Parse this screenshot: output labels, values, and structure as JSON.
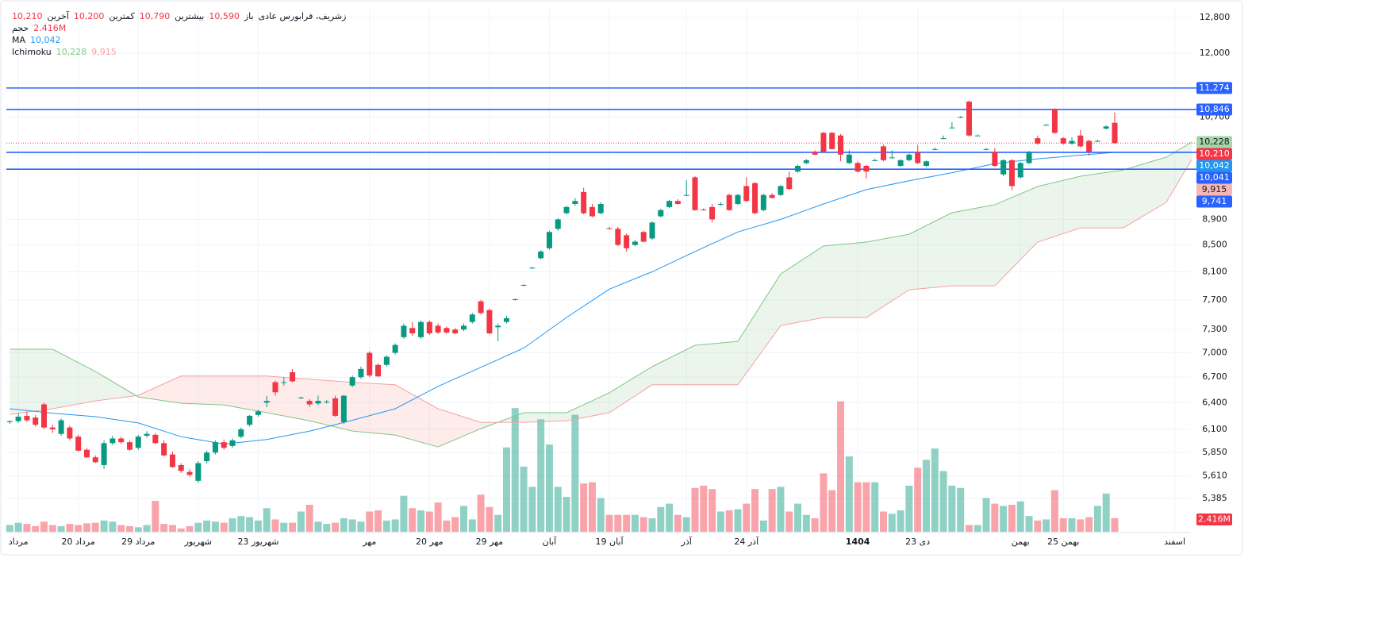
{
  "chart_data": {
    "type": "candlestick",
    "title": "زشریف، فرابورس عادی",
    "ohlc_names": [
      "باز",
      "بیشترین",
      "کمترین",
      "آخرین"
    ],
    "ohlc_labels": [
      "10,590",
      "10,790",
      "10,200",
      "10,210"
    ],
    "up_color": "#089981",
    "down_color": "#f23645",
    "log_scale": true,
    "grid": true,
    "xlim": [
      -0.4,
      137.8
    ],
    "ylim": [
      5073,
      13021
    ],
    "yticks": [
      {
        "value": 12800,
        "label": "12,800"
      },
      {
        "value": 12000,
        "label": "12,000"
      },
      {
        "value": 10700,
        "label": "10,700"
      },
      {
        "value": 8900,
        "label": "8,900"
      },
      {
        "value": 8500,
        "label": "8,500"
      },
      {
        "value": 8100,
        "label": "8,100"
      },
      {
        "value": 7700,
        "label": "7,700"
      },
      {
        "value": 7300,
        "label": "7,300"
      },
      {
        "value": 7000,
        "label": "7,000"
      },
      {
        "value": 6700,
        "label": "6,700"
      },
      {
        "value": 6400,
        "label": "6,400"
      },
      {
        "value": 6100,
        "label": "6,100"
      },
      {
        "value": 5850,
        "label": "5,850"
      },
      {
        "value": 5610,
        "label": "5,610"
      },
      {
        "value": 5385,
        "label": "5,385"
      }
    ],
    "xticks": [
      {
        "value": 1,
        "label": "مرداد"
      },
      {
        "value": 8,
        "label": "20 مرداد"
      },
      {
        "value": 15,
        "label": "29 مرداد"
      },
      {
        "value": 22,
        "label": "شهریور"
      },
      {
        "value": 29,
        "label": "23 شهریور"
      },
      {
        "value": 42,
        "label": "مهر"
      },
      {
        "value": 49,
        "label": "20 مهر"
      },
      {
        "value": 56,
        "label": "29 مهر"
      },
      {
        "value": 63,
        "label": "آبان"
      },
      {
        "value": 70,
        "label": "19 آبان"
      },
      {
        "value": 79,
        "label": "آذر"
      },
      {
        "value": 86,
        "label": "24 آذر"
      },
      {
        "value": 99,
        "label": "1404"
      },
      {
        "value": 106,
        "label": "23 دی"
      },
      {
        "value": 118,
        "label": "بهمن"
      },
      {
        "value": 123,
        "label": "25 بهمن"
      },
      {
        "value": 136,
        "label": "اسفند"
      }
    ],
    "candles": [
      [
        6180,
        6200,
        6160,
        6190
      ],
      [
        6190,
        6280,
        6170,
        6240
      ],
      [
        6250,
        6300,
        6180,
        6200
      ],
      [
        6230,
        6260,
        6130,
        6150
      ],
      [
        6380,
        6400,
        6100,
        6120
      ],
      [
        6120,
        6150,
        6060,
        6100
      ],
      [
        6050,
        6220,
        6030,
        6200
      ],
      [
        6120,
        6140,
        5980,
        6000
      ],
      [
        6020,
        6040,
        5860,
        5870
      ],
      [
        5880,
        5900,
        5790,
        5800
      ],
      [
        5800,
        5820,
        5740,
        5750
      ],
      [
        5720,
        5980,
        5680,
        5950
      ],
      [
        5950,
        6030,
        5930,
        6000
      ],
      [
        6000,
        6020,
        5940,
        5960
      ],
      [
        5960,
        5980,
        5870,
        5880
      ],
      [
        5900,
        6040,
        5880,
        6020
      ],
      [
        6030,
        6080,
        6010,
        6050
      ],
      [
        6040,
        6060,
        5940,
        5950
      ],
      [
        5950,
        5980,
        5810,
        5820
      ],
      [
        5830,
        5860,
        5690,
        5700
      ],
      [
        5720,
        5740,
        5640,
        5660
      ],
      [
        5650,
        5680,
        5600,
        5620
      ],
      [
        5560,
        5760,
        5540,
        5740
      ],
      [
        5760,
        5870,
        5740,
        5850
      ],
      [
        5850,
        5980,
        5830,
        5960
      ],
      [
        5960,
        5990,
        5880,
        5900
      ],
      [
        5920,
        6000,
        5900,
        5980
      ],
      [
        6020,
        6120,
        6000,
        6100
      ],
      [
        6150,
        6260,
        6130,
        6250
      ],
      [
        6260,
        6320,
        6240,
        6300
      ],
      [
        6400,
        6480,
        6350,
        6420
      ],
      [
        6640,
        6660,
        6480,
        6520
      ],
      [
        6640,
        6700,
        6600,
        6640
      ],
      [
        6760,
        6800,
        6640,
        6650
      ],
      [
        6460,
        6470,
        6440,
        6460
      ],
      [
        6420,
        6440,
        6350,
        6380
      ],
      [
        6390,
        6480,
        6370,
        6420
      ],
      [
        6410,
        6430,
        6390,
        6410
      ],
      [
        6450,
        6480,
        6240,
        6250
      ],
      [
        6180,
        6490,
        6160,
        6480
      ],
      [
        6600,
        6720,
        6580,
        6700
      ],
      [
        6700,
        6830,
        6680,
        6800
      ],
      [
        7000,
        7020,
        6700,
        6720
      ],
      [
        6850,
        6870,
        6700,
        6710
      ],
      [
        6850,
        6970,
        6830,
        6950
      ],
      [
        7000,
        7120,
        6980,
        7100
      ],
      [
        7200,
        7380,
        7180,
        7350
      ],
      [
        7320,
        7400,
        7220,
        7250
      ],
      [
        7200,
        7420,
        7180,
        7400
      ],
      [
        7400,
        7420,
        7230,
        7250
      ],
      [
        7350,
        7380,
        7240,
        7260
      ],
      [
        7320,
        7340,
        7240,
        7260
      ],
      [
        7300,
        7320,
        7240,
        7250
      ],
      [
        7300,
        7380,
        7280,
        7350
      ],
      [
        7400,
        7520,
        7380,
        7500
      ],
      [
        7680,
        7700,
        7500,
        7520
      ],
      [
        7560,
        7580,
        7240,
        7250
      ],
      [
        7330,
        7380,
        7150,
        7350
      ],
      [
        7400,
        7480,
        7380,
        7450
      ],
      [
        7700,
        7720,
        7690,
        7710
      ],
      [
        7900,
        7920,
        7890,
        7910
      ],
      [
        8150,
        8170,
        8140,
        8160
      ],
      [
        8300,
        8420,
        8280,
        8400
      ],
      [
        8450,
        8720,
        8430,
        8700
      ],
      [
        8750,
        8920,
        8720,
        8900
      ],
      [
        9000,
        9120,
        8980,
        9100
      ],
      [
        9150,
        9250,
        9120,
        9200
      ],
      [
        9350,
        9420,
        8980,
        9000
      ],
      [
        9100,
        9150,
        8930,
        8950
      ],
      [
        9000,
        9180,
        8980,
        9150
      ],
      [
        8760,
        8780,
        8740,
        8750
      ],
      [
        8750,
        8780,
        8480,
        8500
      ],
      [
        8650,
        8680,
        8400,
        8450
      ],
      [
        8500,
        8580,
        8480,
        8550
      ],
      [
        8700,
        8720,
        8540,
        8550
      ],
      [
        8600,
        8870,
        8580,
        8850
      ],
      [
        8950,
        9070,
        8930,
        9050
      ],
      [
        9100,
        9220,
        9080,
        9200
      ],
      [
        9200,
        9230,
        9140,
        9150
      ],
      [
        9300,
        9550,
        9280,
        9300
      ],
      [
        9600,
        9620,
        9040,
        9050
      ],
      [
        9060,
        9080,
        9040,
        9050
      ],
      [
        9100,
        9150,
        8850,
        8900
      ],
      [
        9150,
        9180,
        9120,
        9150
      ],
      [
        9300,
        9320,
        9040,
        9050
      ],
      [
        9150,
        9320,
        9130,
        9300
      ],
      [
        9450,
        9600,
        9180,
        9200
      ],
      [
        9500,
        9520,
        8980,
        9000
      ],
      [
        9050,
        9320,
        9030,
        9300
      ],
      [
        9300,
        9330,
        9240,
        9250
      ],
      [
        9300,
        9470,
        9280,
        9450
      ],
      [
        9600,
        9700,
        9380,
        9400
      ],
      [
        9700,
        9820,
        9680,
        9800
      ],
      [
        9850,
        9920,
        9830,
        9900
      ],
      [
        10050,
        10080,
        9990,
        10000
      ],
      [
        10400,
        10420,
        10040,
        10050
      ],
      [
        10400,
        10420,
        10090,
        10100
      ],
      [
        10350,
        10380,
        9880,
        10000
      ],
      [
        9850,
        10080,
        9830,
        10000
      ],
      [
        9850,
        9880,
        9680,
        9700
      ],
      [
        9800,
        9820,
        9580,
        9700
      ],
      [
        9900,
        9930,
        9880,
        9900
      ],
      [
        10150,
        10180,
        9880,
        9900
      ],
      [
        9950,
        10080,
        9930,
        9950
      ],
      [
        9800,
        9920,
        9780,
        9900
      ],
      [
        9900,
        10020,
        9880,
        10000
      ],
      [
        10050,
        10180,
        9830,
        9850
      ],
      [
        9800,
        9900,
        9780,
        9880
      ],
      [
        10100,
        10130,
        10080,
        10100
      ],
      [
        10300,
        10350,
        10280,
        10300
      ],
      [
        10500,
        10600,
        10480,
        10500
      ],
      [
        10700,
        10720,
        10680,
        10700
      ],
      [
        11000,
        11020,
        10330,
        10350
      ],
      [
        10350,
        10370,
        10340,
        10350
      ],
      [
        10100,
        10120,
        10080,
        10100
      ],
      [
        10050,
        10120,
        9780,
        9800
      ],
      [
        9650,
        9920,
        9620,
        9900
      ],
      [
        9900,
        9920,
        9380,
        9450
      ],
      [
        9600,
        9870,
        9580,
        9850
      ],
      [
        9850,
        10070,
        9830,
        10050
      ],
      [
        10300,
        10350,
        10180,
        10200
      ],
      [
        10550,
        10570,
        10540,
        10550
      ],
      [
        10850,
        10870,
        10380,
        10400
      ],
      [
        10300,
        10320,
        10180,
        10200
      ],
      [
        10200,
        10320,
        10180,
        10250
      ],
      [
        10350,
        10450,
        10130,
        10150
      ],
      [
        10250,
        10270,
        9980,
        10050
      ],
      [
        10250,
        10270,
        10230,
        10250
      ],
      [
        10480,
        10540,
        10460,
        10520
      ],
      [
        10590,
        10790,
        10200,
        10210
      ]
    ],
    "volume": {
      "name": "حجم",
      "ylim": [
        0,
        24
      ],
      "last_label": "2.416M",
      "values": [
        1.2,
        1.6,
        1.4,
        1.0,
        1.8,
        1.2,
        1.0,
        1.4,
        1.2,
        1.5,
        1.6,
        2.0,
        1.8,
        1.2,
        1.0,
        0.8,
        1.2,
        5.5,
        1.4,
        1.2,
        0.6,
        1.0,
        1.6,
        2.0,
        1.8,
        1.6,
        2.4,
        2.8,
        2.6,
        2.0,
        4.2,
        2.2,
        1.6,
        1.6,
        3.6,
        4.8,
        1.8,
        1.4,
        1.6,
        2.4,
        2.2,
        1.8,
        3.6,
        3.8,
        2.0,
        2.2,
        6.4,
        4.2,
        3.8,
        3.6,
        5.2,
        2.0,
        2.6,
        4.6,
        2.2,
        6.6,
        4.4,
        3.0,
        15.0,
        22.0,
        11.6,
        8.0,
        20.0,
        15.5,
        8.0,
        6.2,
        20.8,
        8.6,
        8.8,
        6.0,
        3.0,
        3.0,
        3.0,
        3.0,
        2.6,
        2.4,
        4.4,
        5.0,
        3.0,
        2.6,
        7.8,
        8.2,
        7.6,
        3.6,
        3.8,
        4.0,
        5.0,
        7.6,
        2.0,
        7.6,
        8.0,
        3.6,
        5.0,
        3.0,
        2.4,
        10.4,
        7.4,
        23.2,
        13.4,
        8.8,
        8.8,
        8.8,
        3.6,
        3.2,
        3.8,
        8.2,
        11.4,
        12.8,
        14.8,
        10.8,
        8.2,
        7.8,
        1.2,
        1.2,
        6.0,
        5.0,
        4.6,
        4.8,
        5.4,
        2.8,
        2.0,
        2.2,
        7.4,
        2.4,
        2.4,
        2.2,
        2.6,
        4.6,
        6.8,
        2.416
      ]
    },
    "ma": {
      "name": "MA",
      "color": "#2196f3",
      "last_label": "10,042",
      "x": [
        0,
        5,
        10,
        15,
        20,
        25,
        30,
        35,
        40,
        45,
        50,
        55,
        60,
        65,
        70,
        75,
        80,
        85,
        90,
        95,
        100,
        105,
        110,
        115,
        120,
        125,
        129
      ],
      "values": [
        6330,
        6280,
        6240,
        6170,
        6020,
        5940,
        5990,
        6080,
        6200,
        6330,
        6590,
        6820,
        7060,
        7460,
        7850,
        8100,
        8400,
        8700,
        8900,
        9150,
        9390,
        9540,
        9680,
        9840,
        9925,
        9990,
        10042
      ]
    },
    "ichimoku": {
      "name": "Ichimoku",
      "labels": [
        "10,228",
        "9,915"
      ],
      "x": [
        0,
        5,
        10,
        15,
        20,
        25,
        30,
        35,
        40,
        45,
        50,
        55,
        60,
        65,
        70,
        75,
        80,
        85,
        90,
        95,
        100,
        105,
        110,
        115,
        120,
        125,
        130,
        135,
        138
      ],
      "span_a": {
        "color": "#81c784",
        "values": [
          7046,
          7046,
          6770,
          6466,
          6393,
          6374,
          6285,
          6195,
          6081,
          6038,
          5910,
          6107,
          6285,
          6285,
          6515,
          6828,
          7096,
          7146,
          8069,
          8483,
          8544,
          8666,
          9008,
          9138,
          9443,
          9619,
          9729,
          9955,
          10228
        ]
      },
      "span_b": {
        "color": "#f7a1a1",
        "values": [
          6266,
          6330,
          6420,
          6485,
          6714,
          6714,
          6714,
          6675,
          6637,
          6609,
          6330,
          6177,
          6177,
          6195,
          6285,
          6609,
          6609,
          6609,
          7352,
          7459,
          7459,
          7841,
          7898,
          7898,
          8544,
          8765,
          8765,
          9176,
          9915
        ]
      }
    },
    "hlines": {
      "color": "#2962ff",
      "values": [
        11274,
        10846,
        10041,
        9741
      ],
      "labels": [
        "11,274",
        "10,846",
        "10,041",
        "9,741"
      ]
    }
  }
}
